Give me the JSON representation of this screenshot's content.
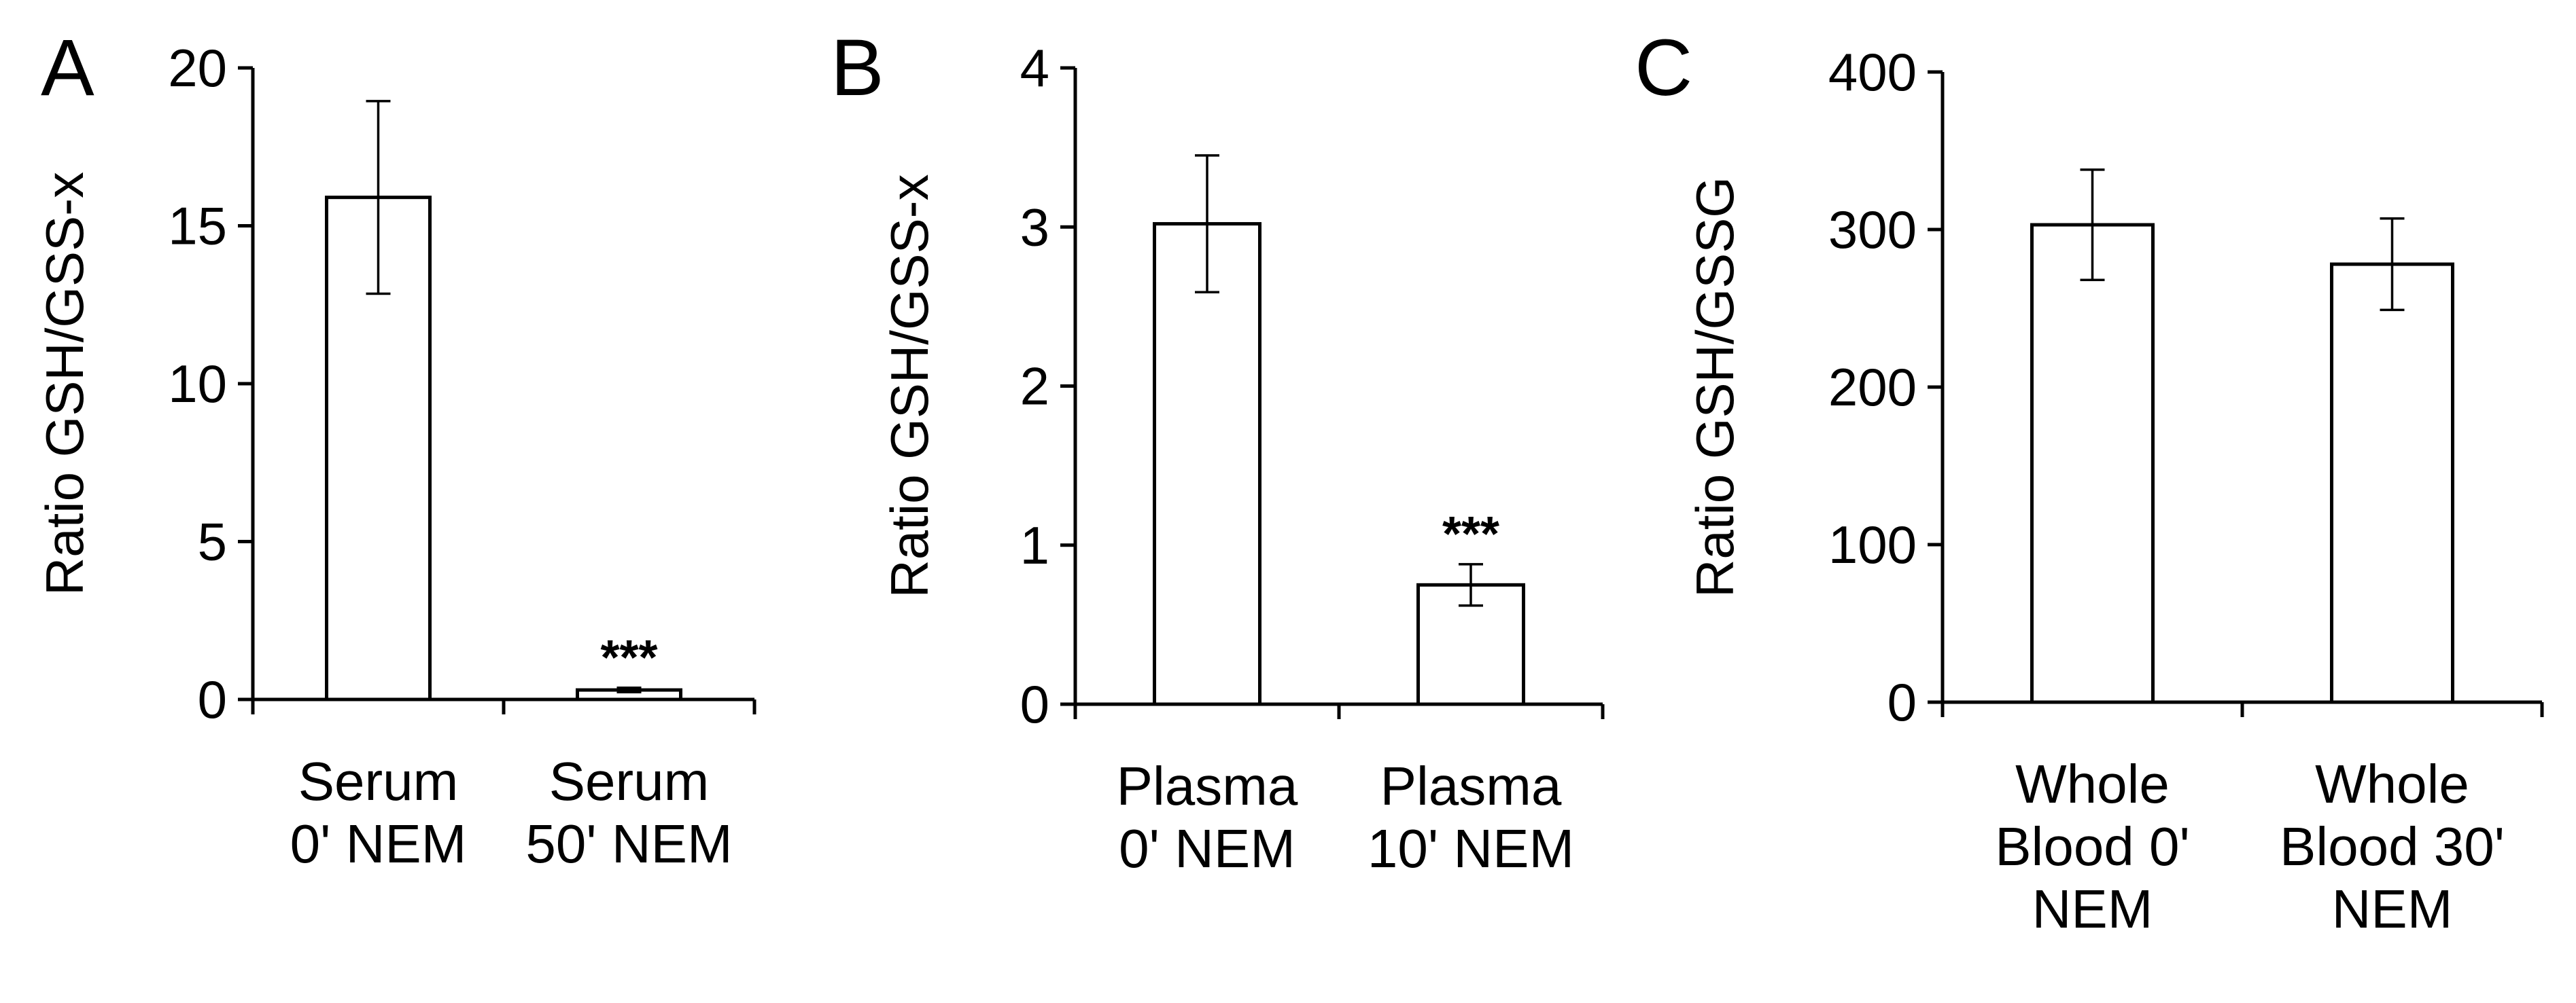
{
  "chart_data": [
    {
      "type": "bar",
      "panel_label": "A",
      "categories": [
        [
          "Serum",
          "0' NEM"
        ],
        [
          "Serum",
          "50' NEM"
        ]
      ],
      "values": [
        15.9,
        0.3
      ],
      "error": [
        3.05,
        0.07
      ],
      "significance": [
        "",
        "***"
      ],
      "ylabel": "Ratio GSH/GSS-x",
      "ylim": [
        0,
        20
      ],
      "yticks": [
        0,
        5,
        10,
        15,
        20
      ],
      "grid": false
    },
    {
      "type": "bar",
      "panel_label": "B",
      "categories": [
        [
          "Plasma",
          "0' NEM"
        ],
        [
          "Plasma",
          "10' NEM"
        ]
      ],
      "values": [
        3.02,
        0.75
      ],
      "error": [
        0.43,
        0.13
      ],
      "significance": [
        "",
        "***"
      ],
      "ylabel": "Ratio GSH/GSS-x",
      "ylim": [
        0,
        4
      ],
      "yticks": [
        0,
        1,
        2,
        3,
        4
      ],
      "grid": false
    },
    {
      "type": "bar",
      "panel_label": "C",
      "categories": [
        [
          "Whole",
          "Blood 0'",
          "NEM"
        ],
        [
          "Whole",
          "Blood 30'",
          "NEM"
        ]
      ],
      "values": [
        303,
        278
      ],
      "error": [
        35,
        29
      ],
      "significance": [
        "",
        ""
      ],
      "ylabel": "Ratio GSH/GSSG",
      "ylim": [
        0,
        400
      ],
      "yticks": [
        0,
        100,
        200,
        300,
        400
      ],
      "grid": false
    }
  ]
}
